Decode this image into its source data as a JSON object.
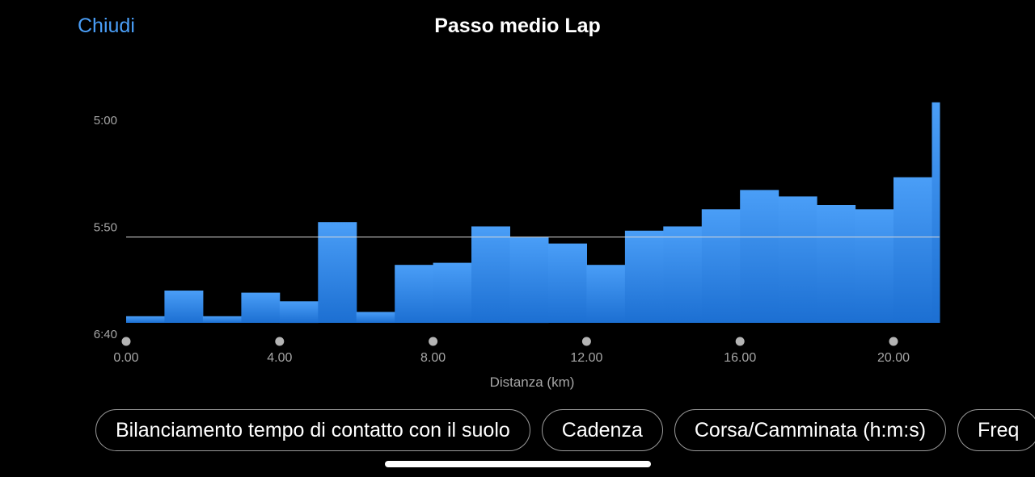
{
  "header": {
    "close_label": "Chiudi",
    "title": "Passo medio Lap"
  },
  "chart_data": {
    "type": "bar",
    "title": "Passo medio Lap",
    "xlabel": "Distanza (km)",
    "ylabel": "",
    "x_ticks": [
      "0.00",
      "4.00",
      "8.00",
      "12.00",
      "16.00",
      "20.00"
    ],
    "x_tick_values": [
      0,
      4,
      8,
      12,
      16,
      20
    ],
    "y_ticks": [
      "5:00",
      "5:50",
      "6:40"
    ],
    "y_tick_values_sec": [
      300,
      350,
      400
    ],
    "y_axis_inverted": true,
    "xlim": [
      0,
      21.2
    ],
    "ylim_sec": [
      300,
      400
    ],
    "average_pace_sec": 355,
    "average_line": true,
    "bar_color_top": "#4a9ef7",
    "bar_color_bottom": "#1c6fd2",
    "bins": [
      {
        "x0": 0,
        "x1": 1,
        "pace_sec": 392
      },
      {
        "x0": 1,
        "x1": 2,
        "pace_sec": 380
      },
      {
        "x0": 2,
        "x1": 3,
        "pace_sec": 392
      },
      {
        "x0": 3,
        "x1": 4,
        "pace_sec": 381
      },
      {
        "x0": 4,
        "x1": 5,
        "pace_sec": 385
      },
      {
        "x0": 5,
        "x1": 6,
        "pace_sec": 348
      },
      {
        "x0": 6,
        "x1": 7,
        "pace_sec": 390
      },
      {
        "x0": 7,
        "x1": 8,
        "pace_sec": 368
      },
      {
        "x0": 8,
        "x1": 9,
        "pace_sec": 367
      },
      {
        "x0": 9,
        "x1": 10,
        "pace_sec": 350
      },
      {
        "x0": 10,
        "x1": 11,
        "pace_sec": 355
      },
      {
        "x0": 11,
        "x1": 12,
        "pace_sec": 358
      },
      {
        "x0": 12,
        "x1": 13,
        "pace_sec": 368
      },
      {
        "x0": 13,
        "x1": 14,
        "pace_sec": 352
      },
      {
        "x0": 14,
        "x1": 15,
        "pace_sec": 350
      },
      {
        "x0": 15,
        "x1": 16,
        "pace_sec": 342
      },
      {
        "x0": 16,
        "x1": 17,
        "pace_sec": 333
      },
      {
        "x0": 17,
        "x1": 18,
        "pace_sec": 336
      },
      {
        "x0": 18,
        "x1": 19,
        "pace_sec": 340
      },
      {
        "x0": 19,
        "x1": 20,
        "pace_sec": 342
      },
      {
        "x0": 20,
        "x1": 21,
        "pace_sec": 327
      },
      {
        "x0": 21,
        "x1": 21.2,
        "pace_sec": 292
      }
    ]
  },
  "metric_pills": [
    "Bilanciamento tempo di contatto con il suolo",
    "Cadenza",
    "Corsa/Camminata (h:m:s)",
    "Freq"
  ],
  "colors": {
    "accent": "#4a9ef7",
    "background": "#000000"
  }
}
